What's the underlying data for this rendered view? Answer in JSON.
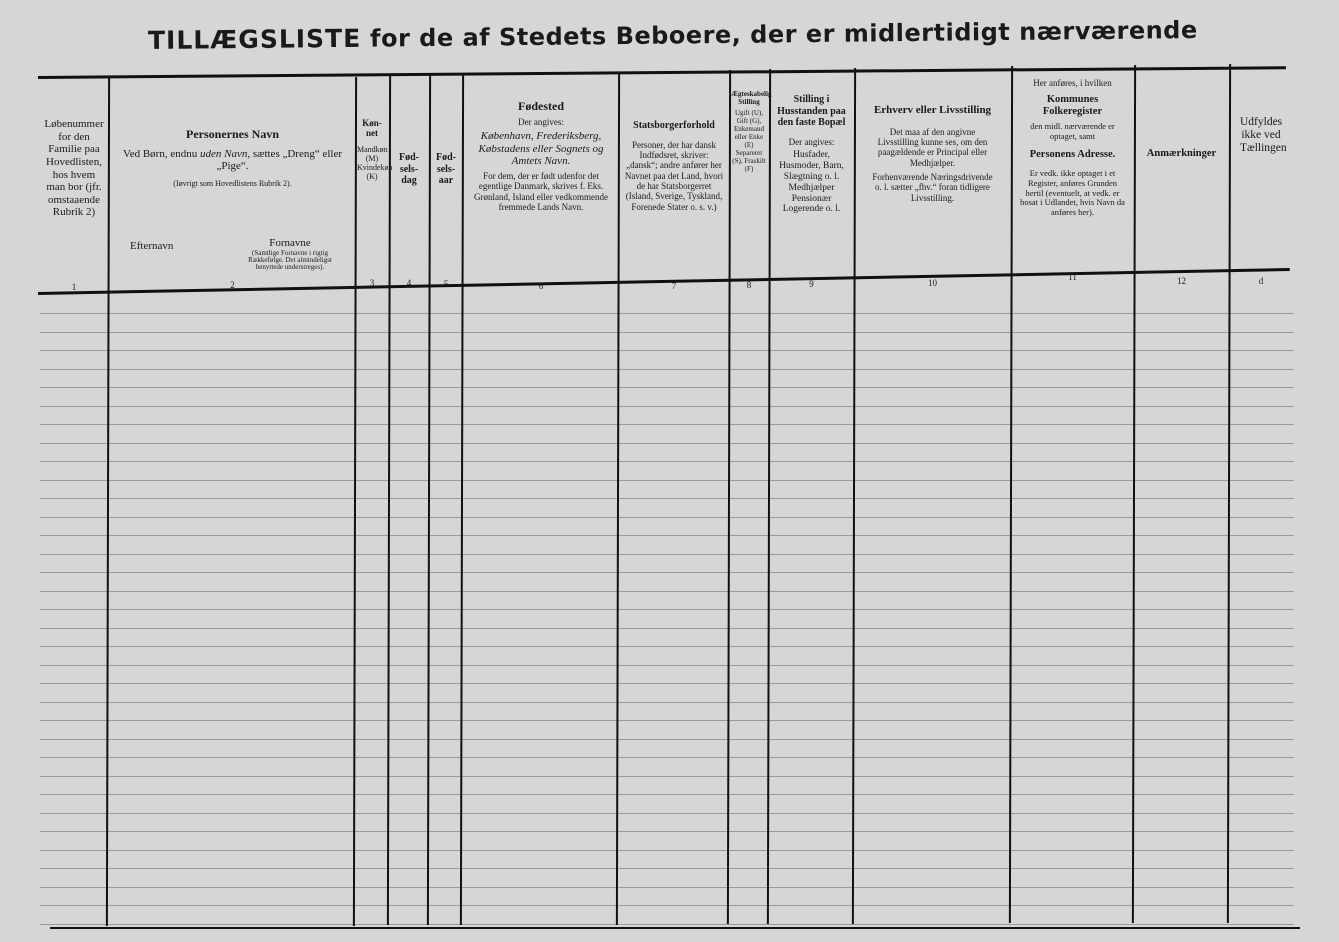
{
  "title": {
    "main": "TILLÆGSLISTE",
    "rest": "for de af Stedets Beboere, der er midlertidigt nærværende"
  },
  "columns": [
    {
      "num": "1",
      "text": "Løbenummer for den Familie paa Hovedlisten, hos hvem man bor (jfr. omstaaende Rubrik 2)"
    },
    {
      "num": "2",
      "heading": "Personernes Navn",
      "line1a": "Ved Børn, endnu ",
      "line1i": "uden Navn",
      "line1b": ", sættes „Dreng“ eller „Pige“.",
      "note": "(Iøvrigt som Hovedlistens Rubrik 2).",
      "sub1": "Efternavn",
      "sub2": "Fornavne",
      "sub2note": "(Samtlige Fornavne i rigtig Rækkefølge. Det almindeligst benyttede understreges)."
    },
    {
      "num": "3",
      "heading": "Køn-net",
      "text": "Mandkøn (M) Kvindekøn (K)"
    },
    {
      "num": "4",
      "heading": "Fød-sels-dag"
    },
    {
      "num": "5",
      "heading": "Fød-sels-aar"
    },
    {
      "num": "6",
      "heading": "Fødested",
      "sub": "Der angives:",
      "italic": "København, Frederiksberg, Købstadens eller Sognets og Amtets Navn.",
      "text": "For dem, der er født udenfor det egentlige Danmark, skrives f. Eks. Grønland, Island eller vedkommende fremmede Lands Navn."
    },
    {
      "num": "7",
      "heading": "Statsborgerforhold",
      "text": "Personer, der har dansk Indfødsret, skriver: „dansk“; andre anfører her Navnet paa det Land, hvori de har Statsborgerret (Island, Sverige, Tyskland, Forenede Stater o. s. v.)"
    },
    {
      "num": "8",
      "heading": "Ægteskabelig Stilling",
      "text": "Ugift (U), Gift (G), Enkemand eller Enke (E) Separeret (S), Fraskilt (F)"
    },
    {
      "num": "9",
      "heading": "Stilling i Husstanden paa den faste Bopæl",
      "sub": "Der angives:",
      "text": "Husfader, Husmoder, Barn, Slægtning o. l. Medhjælper Pensionær Logerende o. l."
    },
    {
      "num": "10",
      "heading": "Erhverv eller Livsstilling",
      "text": "Det maa af den angivne Livsstilling kunne ses, om den paagældende er Principal eller Medhjælper.",
      "text2": "Forhenværende Næringsdrivende o. l. sætter „fhv.“ foran tidligere Livsstilling."
    },
    {
      "num": "11",
      "pre": "Her anføres, i hvilken",
      "heading": "Kommunes Folkeregister",
      "mid": "den midl. nærværende er optaget, samt",
      "heading2": "Personens Adresse.",
      "text": "Er vedk. ikke optaget i et Register, anføres Grunden hertil (eventuelt, at vedk. er bosat i Udlandet, hvis Navn da anføres her)."
    },
    {
      "num": "12",
      "heading": "Anmærkninger"
    },
    {
      "num": "d",
      "text": "Udfyldes ikke ved Tællingen"
    }
  ]
}
